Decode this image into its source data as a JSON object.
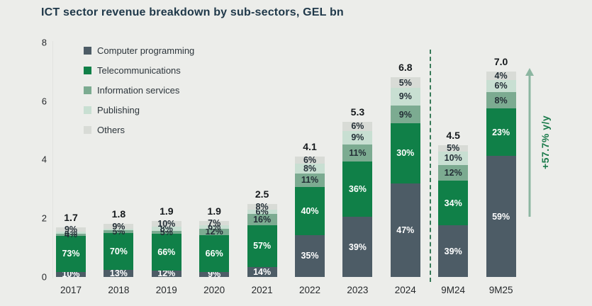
{
  "title": "ICT sector revenue breakdown by sub-sectors, GEL bn",
  "annotation": "+57.7% y/y",
  "colors": {
    "background": "#ecedea",
    "title_text": "#20394a",
    "axis_text": "#26292c",
    "axis_line": "#e2e3df",
    "total_label_text": "#15191c",
    "segment_label_dark": "#232e36",
    "segment_label_light": "#ffffff",
    "computer_programming": "#4d5c66",
    "telecommunications": "#108048",
    "information_services": "#7cab91",
    "publishing": "#c8dfd2",
    "others": "#d8dbd6",
    "separator": "#377a58",
    "annotation_text": "#1a7a4a",
    "annotation_arrow": "#8cb6a1",
    "legend_text": "#2c353b"
  },
  "legend": [
    {
      "label": "Computer programming",
      "key": "computer_programming"
    },
    {
      "label": "Telecommunications",
      "key": "telecommunications"
    },
    {
      "label": "Information services",
      "key": "information_services"
    },
    {
      "label": "Publishing",
      "key": "publishing"
    },
    {
      "label": "Others",
      "key": "others"
    }
  ],
  "y_axis": {
    "ticks": [
      0,
      2,
      4,
      6,
      8
    ],
    "max": 8
  },
  "chart_data": {
    "type": "bar",
    "stacked": true,
    "title": "ICT sector revenue breakdown by sub-sectors, GEL bn",
    "ylabel": "GEL bn",
    "ylim": [
      0,
      8
    ],
    "grid": false,
    "legend_position": "upper-left",
    "categories": [
      "2017",
      "2018",
      "2019",
      "2020",
      "2021",
      "2022",
      "2023",
      "2024",
      "9M24",
      "9M25"
    ],
    "totals": [
      1.7,
      1.8,
      1.9,
      1.9,
      2.5,
      4.1,
      5.3,
      6.8,
      4.5,
      7.0
    ],
    "total_labels": [
      "1.7",
      "1.8",
      "1.9",
      "1.9",
      "2.5",
      "4.1",
      "5.3",
      "6.8",
      "4.5",
      "7.0"
    ],
    "separator_after": "2024",
    "series": [
      {
        "name": "Computer programming",
        "key": "computer_programming",
        "pct": [
          10,
          13,
          12,
          9,
          14,
          35,
          39,
          47,
          39,
          59
        ],
        "labels": [
          "10%",
          "13%",
          "12%",
          "9%",
          "14%",
          "35%",
          "39%",
          "47%",
          "39%",
          "59%"
        ]
      },
      {
        "name": "Telecommunications",
        "key": "telecommunications",
        "pct": [
          73,
          70,
          66,
          66,
          57,
          40,
          36,
          30,
          34,
          23
        ],
        "labels": [
          "73%",
          "70%",
          "66%",
          "66%",
          "57%",
          "40%",
          "36%",
          "30%",
          "34%",
          "23%"
        ]
      },
      {
        "name": "Information services",
        "key": "information_services",
        "pct": [
          4,
          5,
          5,
          12,
          16,
          11,
          11,
          9,
          12,
          8
        ],
        "labels": [
          "4%",
          "5%",
          "5%",
          "12%",
          "16%",
          "11%",
          "11%",
          "9%",
          "12%",
          "8%"
        ]
      },
      {
        "name": "Publishing",
        "key": "publishing",
        "pct": [
          4,
          3,
          8,
          6,
          6,
          8,
          9,
          9,
          10,
          6
        ],
        "labels": [
          "4%",
          "",
          "8%",
          "6%",
          "6%",
          "8%",
          "9%",
          "9%",
          "10%",
          "6%"
        ]
      },
      {
        "name": "Others",
        "key": "others",
        "pct": [
          9,
          9,
          10,
          7,
          8,
          6,
          6,
          5,
          5,
          4
        ],
        "labels": [
          "9%",
          "9%",
          "10%",
          "7%",
          "8%",
          "6%",
          "6%",
          "5%",
          "5%",
          "4%"
        ]
      }
    ]
  }
}
